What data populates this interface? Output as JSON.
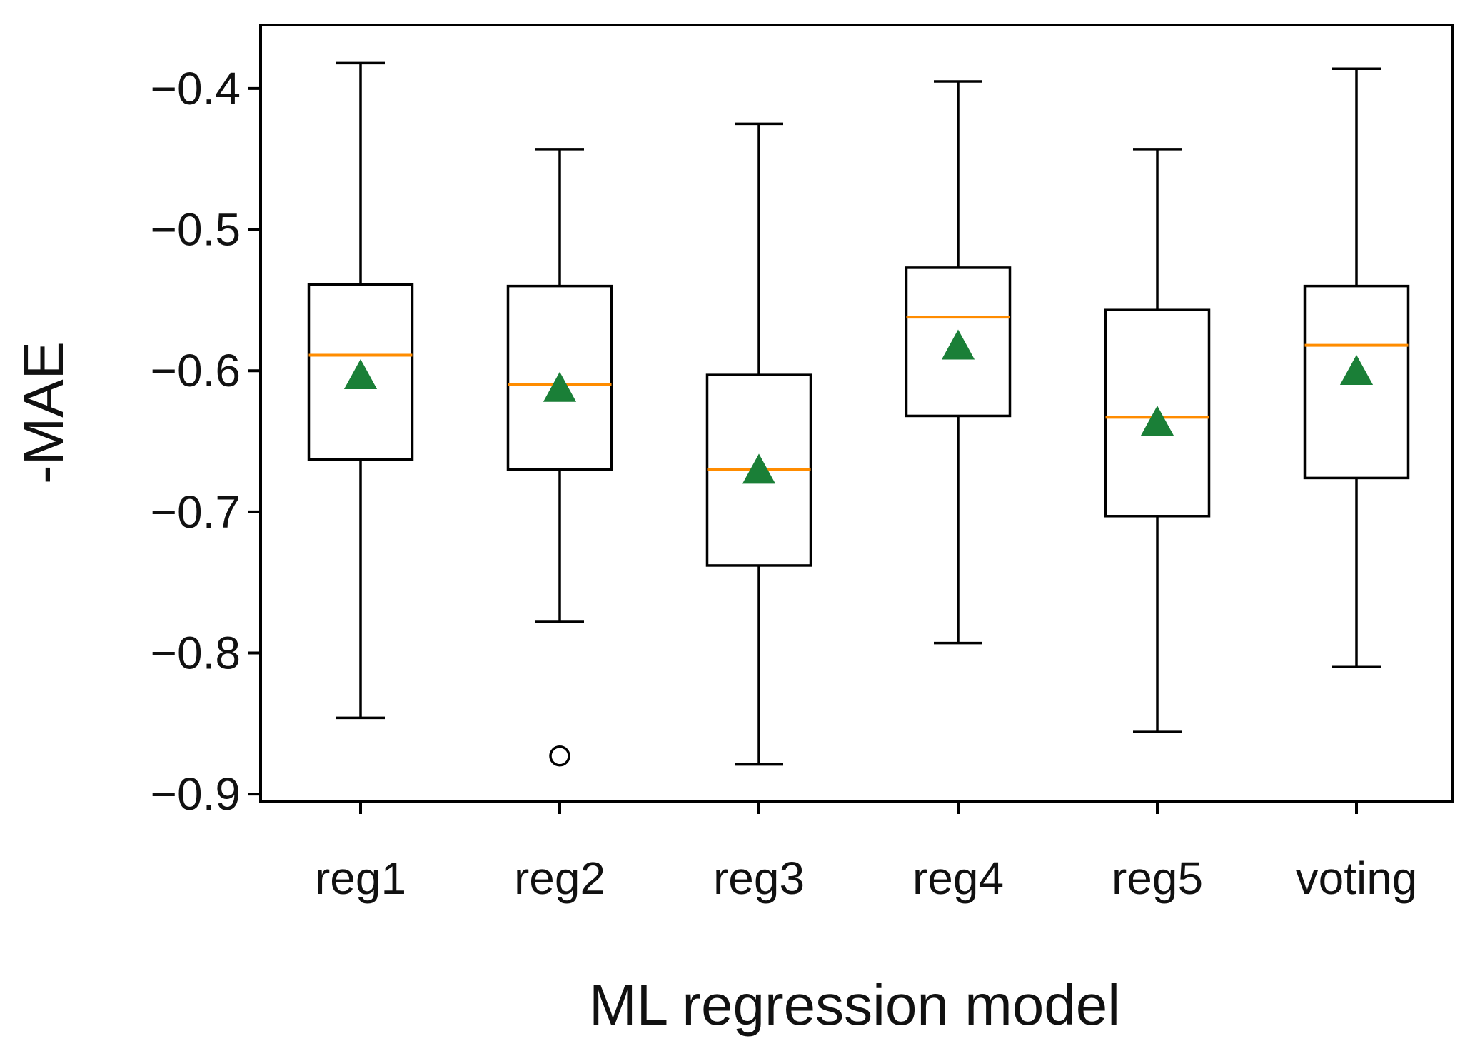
{
  "chart_data": {
    "type": "box",
    "xlabel": "ML regression model",
    "ylabel": "-MAE",
    "ylim": [
      -0.905,
      -0.355
    ],
    "yticks": [
      -0.4,
      -0.5,
      -0.6,
      -0.7,
      -0.8,
      -0.9
    ],
    "ytick_labels": [
      "−0.4",
      "−0.5",
      "−0.6",
      "−0.7",
      "−0.8",
      "−0.9"
    ],
    "categories": [
      "reg1",
      "reg2",
      "reg3",
      "reg4",
      "reg5",
      "voting"
    ],
    "boxes": [
      {
        "name": "reg1",
        "whisker_high": -0.382,
        "q3": -0.539,
        "median": -0.589,
        "q1": -0.663,
        "whisker_low": -0.846,
        "mean": -0.604,
        "outliers": []
      },
      {
        "name": "reg2",
        "whisker_high": -0.443,
        "q3": -0.54,
        "median": -0.61,
        "q1": -0.67,
        "whisker_low": -0.778,
        "mean": -0.613,
        "outliers": [
          -0.873
        ]
      },
      {
        "name": "reg3",
        "whisker_high": -0.425,
        "q3": -0.603,
        "median": -0.67,
        "q1": -0.738,
        "whisker_low": -0.879,
        "mean": -0.671,
        "outliers": []
      },
      {
        "name": "reg4",
        "whisker_high": -0.395,
        "q3": -0.527,
        "median": -0.562,
        "q1": -0.632,
        "whisker_low": -0.793,
        "mean": -0.583,
        "outliers": []
      },
      {
        "name": "reg5",
        "whisker_high": -0.443,
        "q3": -0.557,
        "median": -0.633,
        "q1": -0.703,
        "whisker_low": -0.856,
        "mean": -0.637,
        "outliers": []
      },
      {
        "name": "voting",
        "whisker_high": -0.386,
        "q3": -0.54,
        "median": -0.582,
        "q1": -0.676,
        "whisker_low": -0.81,
        "mean": -0.601,
        "outliers": []
      }
    ],
    "colors": {
      "median": "#ff8c00",
      "mean": "#1a7f37",
      "box": "#000000"
    }
  }
}
